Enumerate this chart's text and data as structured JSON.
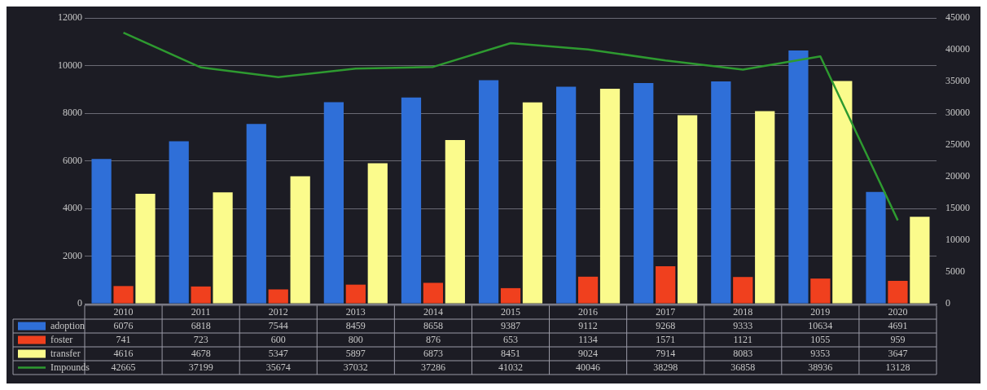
{
  "chart_data": {
    "type": "bar",
    "categories": [
      "2010",
      "2011",
      "2012",
      "2013",
      "2014",
      "2015",
      "2016",
      "2017",
      "2018",
      "2019",
      "2020"
    ],
    "series": [
      {
        "name": "adoption",
        "color": "#2f6fd8",
        "values": [
          6076,
          6818,
          7544,
          8459,
          8658,
          9387,
          9112,
          9268,
          9333,
          10634,
          4691
        ]
      },
      {
        "name": "foster",
        "color": "#f0401e",
        "values": [
          741,
          723,
          600,
          800,
          876,
          653,
          1134,
          1571,
          1121,
          1055,
          959
        ]
      },
      {
        "name": "transfer",
        "color": "#fbfb8c",
        "values": [
          4616,
          4678,
          5347,
          5897,
          6873,
          8451,
          9024,
          7914,
          8083,
          9353,
          3647
        ]
      },
      {
        "name": "Impounds",
        "color": "#2e9a30",
        "type": "line",
        "axis": "y2",
        "values": [
          42665,
          37199,
          35674,
          37032,
          37286,
          41032,
          40046,
          38298,
          36858,
          38936,
          13128
        ]
      }
    ],
    "ylim": [
      0,
      12000
    ],
    "yticks": [
      0,
      2000,
      4000,
      6000,
      8000,
      10000,
      12000
    ],
    "y2lim": [
      0,
      45000
    ],
    "y2ticks": [
      0,
      5000,
      10000,
      15000,
      20000,
      25000,
      30000,
      35000,
      40000,
      45000
    ],
    "grid": "y",
    "legend": "bottom",
    "data_labels": true,
    "marker": "none"
  }
}
